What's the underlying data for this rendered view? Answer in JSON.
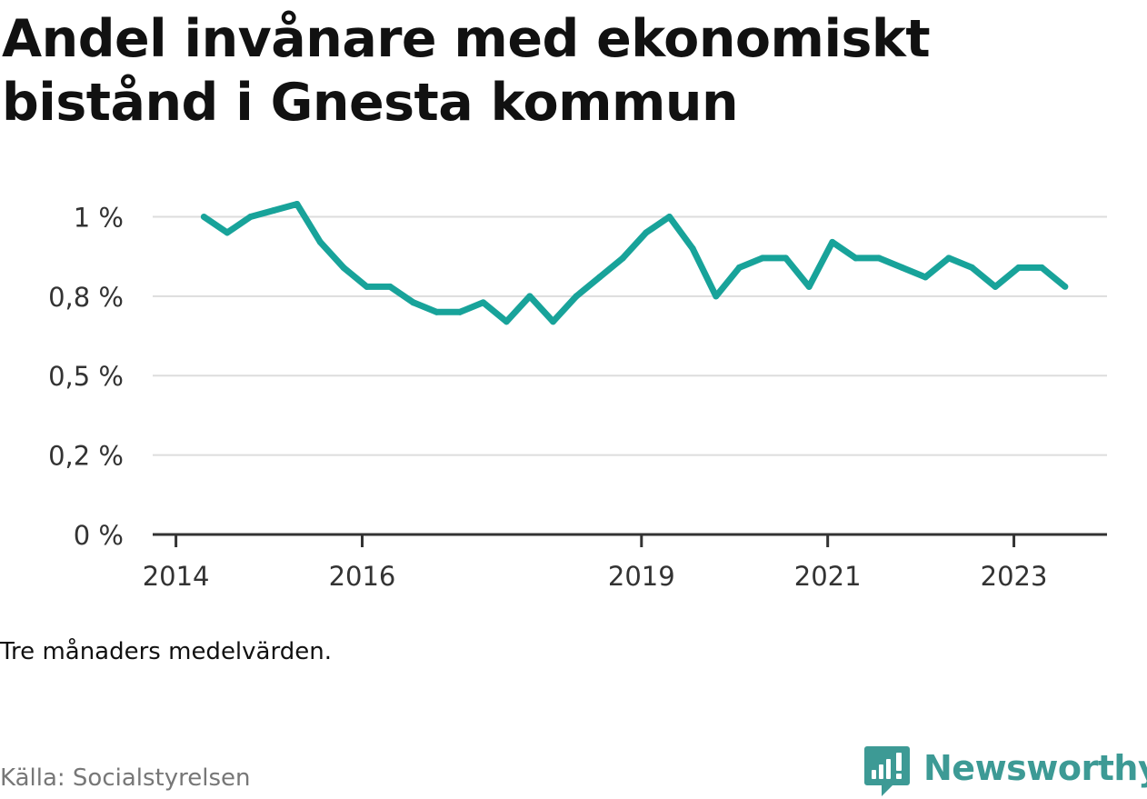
{
  "title": "Andel invånare med ekonomiskt bistånd i Gnesta kommun",
  "note": "Tre månaders medelvärden.",
  "source": "Källa: Socialstyrelsen",
  "logo": {
    "icon": "newsworthy-chart-bubble-icon",
    "text": "Newsworthy",
    "color": "#3d9a95"
  },
  "colors": {
    "line": "#18a39a",
    "grid": "#dddddd",
    "axis": "#333333",
    "text": "#111111",
    "muted": "#777777"
  },
  "chart_data": {
    "type": "line",
    "title": "Andel invånare med ekonomiskt bistånd i Gnesta kommun",
    "xlabel": "",
    "ylabel": "",
    "ylim": [
      0,
      1.07
    ],
    "xlim": [
      2013.75,
      2024.0
    ],
    "yticks": [
      0,
      0.25,
      0.5,
      0.75,
      1.0
    ],
    "ytick_labels": [
      "0 %",
      "0,2 %",
      "0,5 %",
      "0,8 %",
      "1 %"
    ],
    "xticks": [
      2014,
      2016,
      2019,
      2021,
      2023
    ],
    "xtick_labels": [
      "2014",
      "2016",
      "2019",
      "2021",
      "2023"
    ],
    "grid": true,
    "legend": "none",
    "series": [
      {
        "x": [
          2014.3,
          2014.55,
          2014.8,
          2015.05,
          2015.3,
          2015.55,
          2015.8,
          2016.05,
          2016.3,
          2016.55,
          2016.8,
          2017.05,
          2017.3,
          2017.55,
          2017.8,
          2018.05,
          2018.3,
          2018.55,
          2018.8,
          2019.05,
          2019.3,
          2019.55,
          2019.8,
          2020.05,
          2020.3,
          2020.55,
          2020.8,
          2021.05,
          2021.3,
          2021.55,
          2021.8,
          2022.05,
          2022.3,
          2022.55,
          2022.8,
          2023.05,
          2023.3,
          2023.55
        ],
        "values": [
          1.0,
          0.95,
          1.0,
          1.02,
          1.04,
          0.92,
          0.84,
          0.78,
          0.78,
          0.73,
          0.7,
          0.7,
          0.73,
          0.67,
          0.75,
          0.67,
          0.75,
          0.81,
          0.87,
          0.95,
          1.0,
          0.9,
          0.75,
          0.84,
          0.87,
          0.87,
          0.78,
          0.92,
          0.87,
          0.87,
          0.84,
          0.81,
          0.87,
          0.84,
          0.78,
          0.84,
          0.84,
          0.78
        ]
      }
    ]
  }
}
